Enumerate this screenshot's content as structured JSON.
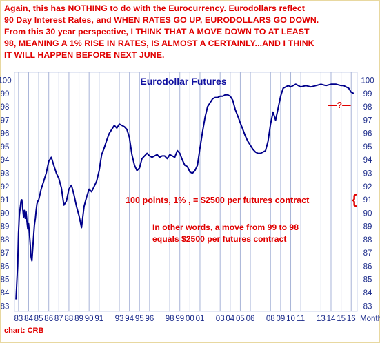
{
  "commentary": {
    "lines": [
      "Again, this has NOTHING to do with the Eurocurrency. Eurodollars reflect",
      "90 Day Interest Rates, and WHEN RATES GO UP, EURODOLLARS GO DOWN.",
      "From this 30 year perspective, I THINK THAT A MOVE DOWN TO AT LEAST",
      "98, MEANING A 1% RISE IN RATES, IS ALMOST A CERTAINLY...AND I THINK",
      "IT WILL HAPPEN BEFORE NEXT JUNE."
    ]
  },
  "annotations": {
    "target_mark": "—?—",
    "points_note": "100 points, 1% , = $2500 per futures contract",
    "brace": "{",
    "example_line1": "In other words, a move from 99 to 98",
    "example_line2": "equals $2500 per futures contract"
  },
  "credit": "chart: CRB",
  "colors": {
    "line": "#00008b",
    "grid": "#a8b4d8",
    "axis_text": "#1a2a8a",
    "title": "#1010a0",
    "annotation": "#e00000",
    "border": "#e8d8a0"
  },
  "chart_data": {
    "type": "line",
    "title": "Eurodollar Futures",
    "x_label": "Monthly",
    "y_ticks": [
      100,
      99,
      98,
      97,
      96,
      95,
      94,
      93,
      92,
      91,
      90,
      89,
      88,
      87,
      86,
      85,
      84,
      83
    ],
    "ylim": [
      82.6,
      100.6
    ],
    "x_ticks": [
      "83",
      "84",
      "85",
      "86",
      "87",
      "88",
      "89",
      "90",
      "91",
      "93",
      "94",
      "95",
      "96",
      "98",
      "99",
      "00",
      "01",
      "03",
      "04",
      "05",
      "06",
      "08",
      "09",
      "10",
      "11",
      "13",
      "14",
      "15",
      "16"
    ],
    "x_tick_years": [
      1983,
      1984,
      1985,
      1986,
      1987,
      1988,
      1989,
      1990,
      1991,
      1993,
      1994,
      1995,
      1996,
      1998,
      1999,
      2000,
      2001,
      2003,
      2004,
      2005,
      2006,
      2008,
      2009,
      2010,
      2011,
      2013,
      2014,
      2015,
      2016
    ],
    "xlim": [
      1982.6,
      2016.6
    ],
    "grid": "vertical",
    "series": [
      {
        "x": [
          1982.75,
          1982.83,
          1982.92,
          1983.0,
          1983.08,
          1983.17,
          1983.25,
          1983.33,
          1983.42,
          1983.5,
          1983.58,
          1983.67,
          1983.75,
          1983.83,
          1983.92,
          1984.0,
          1984.08,
          1984.17,
          1984.25,
          1984.33,
          1984.42,
          1984.5,
          1984.58,
          1984.67,
          1984.75,
          1984.83,
          1984.92,
          1985.0,
          1985.25,
          1985.5,
          1985.75,
          1986.0,
          1986.25,
          1986.5,
          1986.75,
          1987.0,
          1987.25,
          1987.5,
          1987.75,
          1988.0,
          1988.25,
          1988.5,
          1988.75,
          1989.0,
          1989.25,
          1989.5,
          1989.75,
          1990.0,
          1990.25,
          1990.5,
          1990.75,
          1991.0,
          1991.25,
          1991.5,
          1991.75,
          1992.0,
          1992.25,
          1992.5,
          1992.75,
          1993.0,
          1993.25,
          1993.5,
          1993.75,
          1994.0,
          1994.25,
          1994.5,
          1994.75,
          1995.0,
          1995.25,
          1995.5,
          1995.75,
          1996.0,
          1996.25,
          1996.5,
          1996.75,
          1997.0,
          1997.25,
          1997.5,
          1997.75,
          1998.0,
          1998.25,
          1998.5,
          1998.75,
          1999.0,
          1999.25,
          1999.5,
          1999.75,
          2000.0,
          2000.25,
          2000.5,
          2000.75,
          2001.0,
          2001.25,
          2001.5,
          2001.75,
          2002.0,
          2002.25,
          2002.5,
          2002.75,
          2003.0,
          2003.25,
          2003.5,
          2003.75,
          2004.0,
          2004.25,
          2004.5,
          2004.75,
          2005.0,
          2005.25,
          2005.5,
          2005.75,
          2006.0,
          2006.25,
          2006.5,
          2006.75,
          2007.0,
          2007.25,
          2007.5,
          2007.75,
          2008.0,
          2008.25,
          2008.5,
          2008.75,
          2009.0,
          2009.25,
          2009.5,
          2009.75,
          2010.0,
          2010.5,
          2011.0,
          2011.5,
          2012.0,
          2012.5,
          2013.0,
          2013.5,
          2014.0,
          2014.5,
          2015.0,
          2015.25,
          2015.5,
          2015.75,
          2016.0,
          2016.25
        ],
        "y": [
          83.5,
          84.8,
          86.2,
          88.5,
          89.8,
          90.4,
          90.9,
          91.0,
          90.3,
          89.7,
          90.2,
          89.6,
          90.1,
          89.4,
          88.8,
          89.2,
          88.5,
          87.6,
          86.7,
          86.4,
          87.4,
          88.3,
          89.1,
          89.6,
          90.2,
          90.7,
          90.9,
          91.0,
          91.8,
          92.4,
          93.0,
          93.9,
          94.2,
          93.6,
          93.0,
          92.6,
          91.9,
          90.6,
          90.9,
          91.8,
          92.1,
          91.4,
          90.5,
          89.8,
          88.9,
          90.5,
          91.2,
          91.8,
          91.6,
          92.0,
          92.4,
          93.2,
          94.4,
          94.9,
          95.5,
          96.0,
          96.3,
          96.6,
          96.4,
          96.7,
          96.6,
          96.5,
          96.3,
          95.7,
          94.4,
          93.6,
          93.2,
          93.4,
          94.1,
          94.3,
          94.5,
          94.3,
          94.2,
          94.3,
          94.4,
          94.2,
          94.3,
          94.3,
          94.1,
          94.4,
          94.3,
          94.2,
          94.7,
          94.5,
          94.0,
          93.6,
          93.5,
          93.1,
          93.0,
          93.2,
          93.6,
          94.9,
          96.1,
          97.2,
          98.0,
          98.3,
          98.6,
          98.7,
          98.7,
          98.8,
          98.8,
          98.9,
          98.9,
          98.8,
          98.5,
          97.8,
          97.3,
          96.8,
          96.3,
          95.8,
          95.4,
          95.1,
          94.8,
          94.6,
          94.5,
          94.5,
          94.6,
          94.7,
          95.4,
          96.7,
          97.6,
          97.0,
          97.9,
          98.8,
          99.4,
          99.5,
          99.6,
          99.5,
          99.7,
          99.5,
          99.6,
          99.5,
          99.6,
          99.7,
          99.6,
          99.7,
          99.7,
          99.6,
          99.6,
          99.5,
          99.4,
          99.1,
          99.0
        ]
      }
    ]
  }
}
